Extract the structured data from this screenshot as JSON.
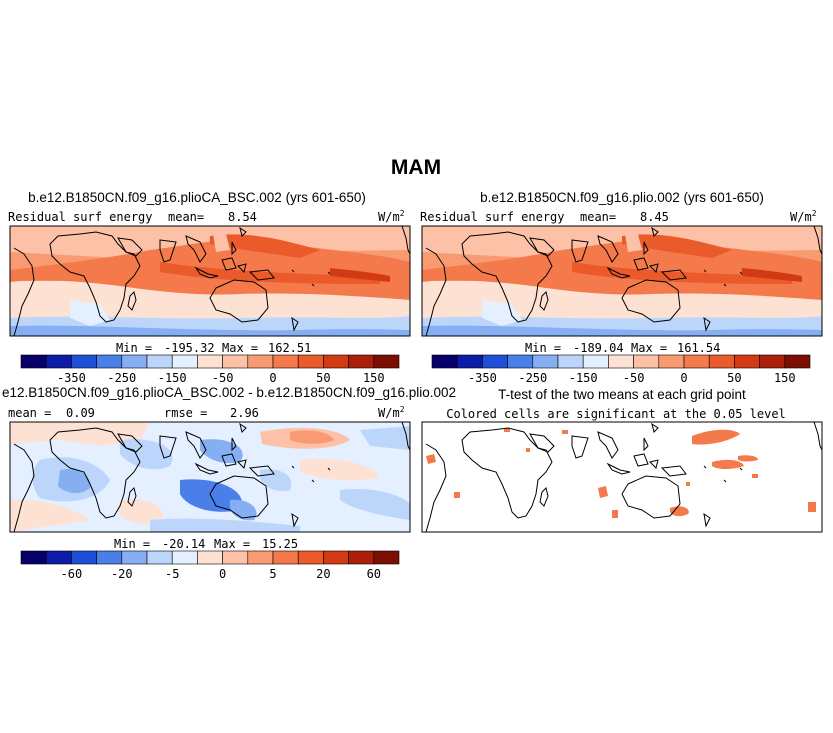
{
  "figure_title": "MAM",
  "chart_data": [
    {
      "type": "heatmap",
      "title": "b.e12.B1850CN.f09_g16.plioCA_BSC.002 (yrs 601-650)",
      "left_label": "Residual surf energy",
      "mean_label": "mean=",
      "mean_value": "8.54",
      "units_base": "W/m",
      "units_exp": "2",
      "min_label": "Min =",
      "min_value": "-195.32",
      "max_label": "Max =",
      "max_value": "162.51",
      "colorbar_ticks": [
        "-350",
        "-250",
        "-150",
        "-50",
        "0",
        "50",
        "150"
      ],
      "colorbar_colors": [
        "#08006a",
        "#0a1ca8",
        "#1f4fd6",
        "#4a7ee8",
        "#86aef3",
        "#bcd5fa",
        "#e4efff",
        "#fde2d4",
        "#fcc1a6",
        "#f99b72",
        "#f47a4c",
        "#ea5a2b",
        "#d23a14",
        "#ab1f0a",
        "#7d0e04"
      ]
    },
    {
      "type": "heatmap",
      "title": "b.e12.B1850CN.f09_g16.plio.002 (yrs 601-650)",
      "left_label": "Residual surf energy",
      "mean_label": "mean=",
      "mean_value": "8.45",
      "units_base": "W/m",
      "units_exp": "2",
      "min_label": "Min =",
      "min_value": "-189.04",
      "max_label": "Max =",
      "max_value": "161.54",
      "colorbar_ticks": [
        "-350",
        "-250",
        "-150",
        "-50",
        "0",
        "50",
        "150"
      ],
      "colorbar_colors": [
        "#08006a",
        "#0a1ca8",
        "#1f4fd6",
        "#4a7ee8",
        "#86aef3",
        "#bcd5fa",
        "#e4efff",
        "#fde2d4",
        "#fcc1a6",
        "#f99b72",
        "#f47a4c",
        "#ea5a2b",
        "#d23a14",
        "#ab1f0a",
        "#7d0e04"
      ]
    },
    {
      "type": "heatmap",
      "title": "e12.B1850CN.f09_g16.plioCA_BSC.002 - b.e12.B1850CN.f09_g16.plio.002",
      "mean_label": "mean =",
      "mean_value": "0.09",
      "rmse_label": "rmse =",
      "rmse_value": "2.96",
      "units_base": "W/m",
      "units_exp": "2",
      "min_label": "Min =",
      "min_value": "-20.14",
      "max_label": "Max =",
      "max_value": "15.25",
      "colorbar_ticks": [
        "-60",
        "-20",
        "-5",
        "0",
        "5",
        "20",
        "60"
      ],
      "colorbar_colors": [
        "#08006a",
        "#0a1ca8",
        "#1f4fd6",
        "#4a7ee8",
        "#86aef3",
        "#bcd5fa",
        "#e4efff",
        "#fde2d4",
        "#fcc1a6",
        "#f99b72",
        "#f47a4c",
        "#ea5a2b",
        "#d23a14",
        "#ab1f0a",
        "#7d0e04"
      ]
    },
    {
      "type": "heatmap",
      "title": "T-test of the two means at each grid point",
      "subtitle": "Colored cells are significant at the 0.05 level",
      "significant_color": "#f47a4c"
    }
  ]
}
